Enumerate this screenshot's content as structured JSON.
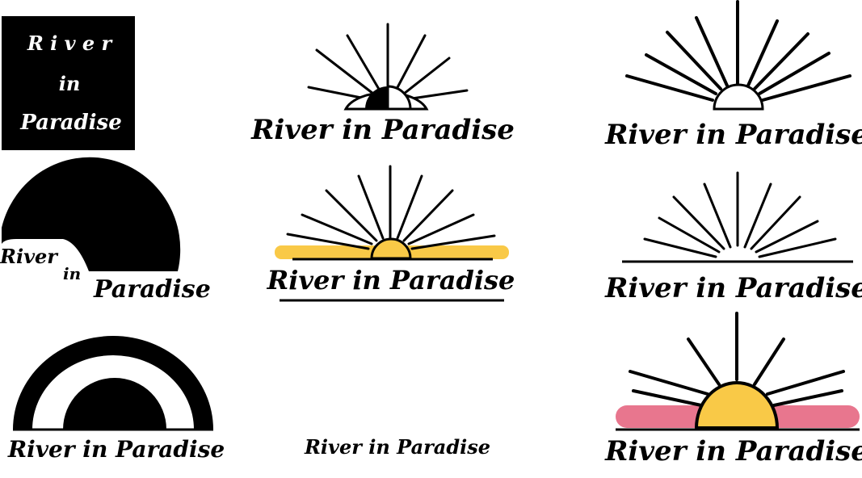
{
  "brand": "River in Paradise",
  "logo_square": {
    "line1": "R i v e r",
    "line2": "in",
    "line3": "Paradise"
  },
  "logo_blob": {
    "line1": "River",
    "line2": "in",
    "line3": "Paradise"
  },
  "colors": {
    "ink": "#000000",
    "paper": "#ffffff",
    "sun_yellow": "#f9c947",
    "horizon_pink": "#e8768e"
  },
  "icons": [
    "sunburst-half-sun",
    "sunburst-outline-sun",
    "sunburst-yellow-horizon",
    "sunburst-horizon-line",
    "sunburst-pink-yellow",
    "dark-sun-arch"
  ]
}
